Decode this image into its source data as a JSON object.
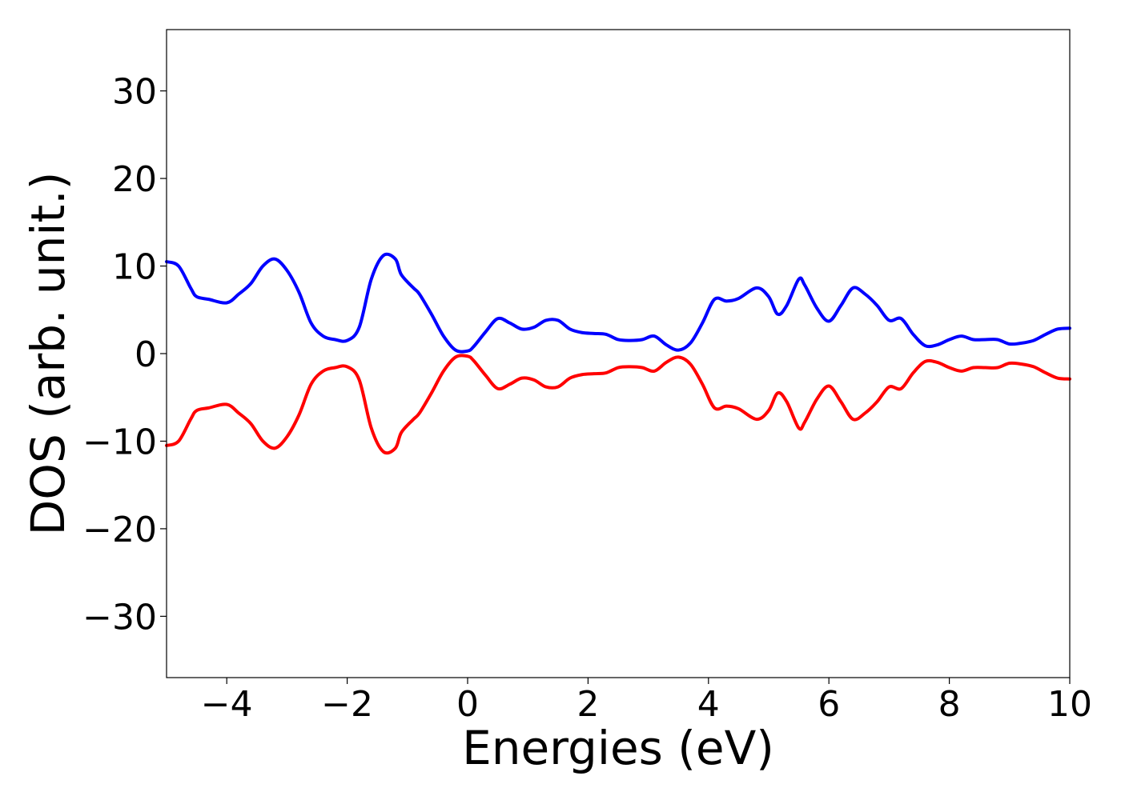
{
  "chart_data": {
    "type": "line",
    "title": "",
    "xlabel": "Energies (eV)",
    "ylabel": "DOS (arb. unit.)",
    "xlim": [
      -5,
      10
    ],
    "ylim": [
      -37,
      37
    ],
    "xticks": [
      -4,
      -2,
      0,
      2,
      4,
      6,
      8,
      10
    ],
    "yticks": [
      -30,
      -20,
      -10,
      0,
      10,
      20,
      30
    ],
    "xtick_labels": [
      "−4",
      "−2",
      "0",
      "2",
      "4",
      "6",
      "8",
      "10"
    ],
    "ytick_labels": [
      "−30",
      "−20",
      "−10",
      "0",
      "10",
      "20",
      "30"
    ],
    "grid": false,
    "legend": "none",
    "series": [
      {
        "color": "#0000ff",
        "x": [
          -5.0,
          -4.8,
          -4.6,
          -4.5,
          -4.3,
          -4.0,
          -3.8,
          -3.6,
          -3.4,
          -3.2,
          -3.0,
          -2.8,
          -2.6,
          -2.4,
          -2.2,
          -2.0,
          -1.8,
          -1.6,
          -1.4,
          -1.2,
          -1.1,
          -0.9,
          -0.8,
          -0.6,
          -0.4,
          -0.2,
          0.0,
          0.1,
          0.3,
          0.5,
          0.7,
          0.9,
          1.1,
          1.3,
          1.5,
          1.7,
          1.9,
          2.1,
          2.3,
          2.5,
          2.7,
          2.9,
          3.1,
          3.3,
          3.5,
          3.7,
          3.9,
          4.1,
          4.3,
          4.5,
          4.8,
          5.0,
          5.15,
          5.3,
          5.5,
          5.6,
          5.8,
          6.0,
          6.2,
          6.4,
          6.6,
          6.8,
          7.0,
          7.2,
          7.4,
          7.6,
          7.8,
          8.0,
          8.2,
          8.4,
          8.6,
          8.8,
          9.0,
          9.2,
          9.4,
          9.6,
          9.8,
          10.0
        ],
        "y": [
          10.5,
          10.0,
          7.5,
          6.5,
          6.2,
          5.8,
          6.8,
          8.0,
          10.0,
          10.8,
          9.5,
          7.0,
          3.5,
          2.0,
          1.6,
          1.5,
          3.0,
          8.5,
          11.2,
          10.8,
          9.0,
          7.5,
          6.8,
          4.5,
          2.0,
          0.4,
          0.3,
          0.8,
          2.5,
          4.0,
          3.5,
          2.8,
          3.0,
          3.8,
          3.8,
          2.8,
          2.4,
          2.3,
          2.2,
          1.6,
          1.5,
          1.6,
          2.0,
          1.0,
          0.4,
          1.2,
          3.5,
          6.2,
          6.0,
          6.3,
          7.5,
          6.5,
          4.5,
          5.5,
          8.5,
          7.8,
          5.2,
          3.7,
          5.5,
          7.5,
          6.8,
          5.5,
          3.8,
          4.0,
          2.2,
          0.9,
          1.0,
          1.6,
          2.0,
          1.6,
          1.6,
          1.6,
          1.1,
          1.2,
          1.5,
          2.2,
          2.8,
          2.9
        ]
      },
      {
        "color": "#ff0000",
        "x": [
          -5.0,
          -4.8,
          -4.6,
          -4.5,
          -4.3,
          -4.0,
          -3.8,
          -3.6,
          -3.4,
          -3.2,
          -3.0,
          -2.8,
          -2.6,
          -2.4,
          -2.2,
          -2.0,
          -1.8,
          -1.6,
          -1.4,
          -1.2,
          -1.1,
          -0.9,
          -0.8,
          -0.6,
          -0.4,
          -0.2,
          0.0,
          0.1,
          0.3,
          0.5,
          0.7,
          0.9,
          1.1,
          1.3,
          1.5,
          1.7,
          1.9,
          2.1,
          2.3,
          2.5,
          2.7,
          2.9,
          3.1,
          3.3,
          3.5,
          3.7,
          3.9,
          4.1,
          4.3,
          4.5,
          4.8,
          5.0,
          5.15,
          5.3,
          5.5,
          5.6,
          5.8,
          6.0,
          6.2,
          6.4,
          6.6,
          6.8,
          7.0,
          7.2,
          7.4,
          7.6,
          7.8,
          8.0,
          8.2,
          8.4,
          8.6,
          8.8,
          9.0,
          9.2,
          9.4,
          9.6,
          9.8,
          10.0
        ],
        "y": [
          -10.5,
          -10.0,
          -7.5,
          -6.5,
          -6.2,
          -5.8,
          -6.8,
          -8.0,
          -10.0,
          -10.8,
          -9.5,
          -7.0,
          -3.5,
          -2.0,
          -1.6,
          -1.5,
          -3.0,
          -8.5,
          -11.2,
          -10.8,
          -9.0,
          -7.5,
          -6.8,
          -4.5,
          -2.0,
          -0.4,
          -0.3,
          -0.8,
          -2.5,
          -4.0,
          -3.5,
          -2.8,
          -3.0,
          -3.8,
          -3.8,
          -2.8,
          -2.4,
          -2.3,
          -2.2,
          -1.6,
          -1.5,
          -1.6,
          -2.0,
          -1.0,
          -0.4,
          -1.2,
          -3.5,
          -6.2,
          -6.0,
          -6.3,
          -7.5,
          -6.5,
          -4.5,
          -5.5,
          -8.5,
          -7.8,
          -5.2,
          -3.7,
          -5.5,
          -7.5,
          -6.8,
          -5.5,
          -3.8,
          -4.0,
          -2.2,
          -0.9,
          -1.0,
          -1.6,
          -2.0,
          -1.6,
          -1.6,
          -1.6,
          -1.1,
          -1.2,
          -1.5,
          -2.2,
          -2.8,
          -2.9
        ]
      }
    ]
  }
}
